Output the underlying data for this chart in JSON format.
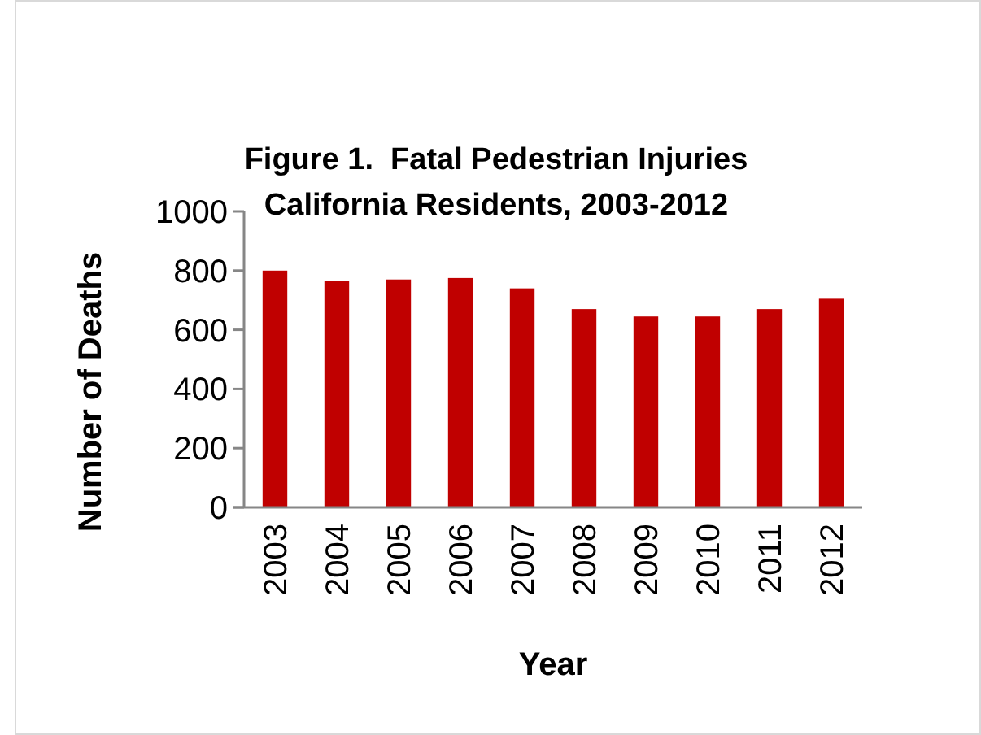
{
  "chart_data": {
    "type": "bar",
    "title": "Figure 1.  Fatal Pedestrian Injuries\nCalifornia Residents, 2003-2012",
    "xlabel": "Year",
    "ylabel": "Number of Deaths",
    "categories": [
      "2003",
      "2004",
      "2005",
      "2006",
      "2007",
      "2008",
      "2009",
      "2010",
      "2011",
      "2012"
    ],
    "values": [
      800,
      765,
      770,
      775,
      740,
      670,
      645,
      645,
      670,
      705
    ],
    "color": "#c00000",
    "ylim": [
      0,
      1000
    ],
    "yticks": [
      0,
      200,
      400,
      600,
      800,
      1000
    ],
    "grid": false
  }
}
